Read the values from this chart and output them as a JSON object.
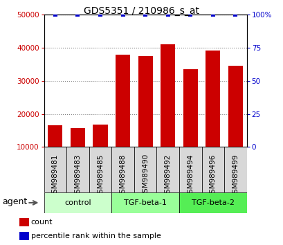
{
  "title": "GDS5351 / 210986_s_at",
  "samples": [
    "GSM989481",
    "GSM989483",
    "GSM989485",
    "GSM989488",
    "GSM989490",
    "GSM989492",
    "GSM989494",
    "GSM989496",
    "GSM989499"
  ],
  "counts": [
    16500,
    15800,
    16700,
    38000,
    37500,
    41000,
    33500,
    39200,
    34500
  ],
  "percentiles": [
    100,
    100,
    100,
    100,
    100,
    100,
    100,
    100,
    100
  ],
  "bar_color": "#cc0000",
  "dot_color": "#0000cc",
  "ylim_left": [
    10000,
    50000
  ],
  "ylim_right": [
    0,
    100
  ],
  "yticks_left": [
    10000,
    20000,
    30000,
    40000,
    50000
  ],
  "yticks_right": [
    0,
    25,
    50,
    75,
    100
  ],
  "groups": [
    {
      "label": "control",
      "start": 0,
      "end": 3,
      "color": "#ccffcc"
    },
    {
      "label": "TGF-beta-1",
      "start": 3,
      "end": 6,
      "color": "#99ff99"
    },
    {
      "label": "TGF-beta-2",
      "start": 6,
      "end": 9,
      "color": "#55ee55"
    }
  ],
  "agent_label": "agent",
  "legend_count_label": "count",
  "legend_percentile_label": "percentile rank within the sample",
  "background_color": "#ffffff",
  "xticklabel_bg": "#d8d8d8",
  "tick_label_color_left": "#cc0000",
  "tick_label_color_right": "#0000cc",
  "title_fontsize": 10,
  "tick_fontsize": 7.5,
  "legend_fontsize": 8,
  "group_fontsize": 8,
  "agent_fontsize": 9
}
